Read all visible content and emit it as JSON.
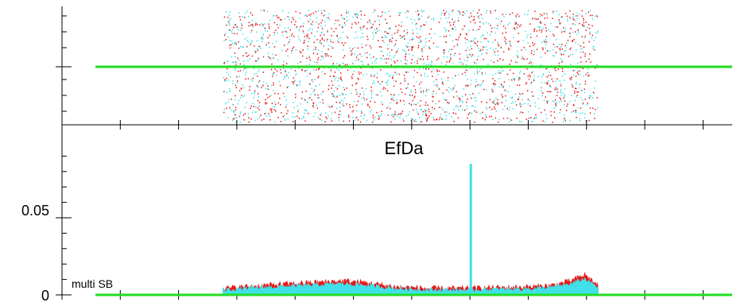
{
  "chart_data": [
    {
      "type": "scatter",
      "panel": "top",
      "description_style": "dense scatter of two colored series over a band of x, with a flat green reference line",
      "x_range_of_points": [
        0.24,
        0.8
      ],
      "series": [
        {
          "color": "#e81818",
          "marker": "dot"
        },
        {
          "color": "#40e0e8",
          "marker": "dot"
        },
        {
          "color": "#22dd22",
          "style": "line",
          "level": "mid"
        }
      ]
    },
    {
      "type": "area",
      "panel": "bottom",
      "title": "EfDa",
      "annotation": "multi SB",
      "yticks": [
        {
          "value": 0,
          "label": "0"
        },
        {
          "value": 0.05,
          "label": "0.05"
        }
      ],
      "ylim": [
        0,
        0.1
      ],
      "xlim": [
        0,
        1
      ],
      "series": [
        {
          "color": "#e81818",
          "style": "filled-area"
        },
        {
          "color": "#40e0e8",
          "style": "filled-area"
        },
        {
          "color": "#22dd22",
          "style": "baseline"
        }
      ],
      "envelope_points": [
        [
          0.24,
          0.004
        ],
        [
          0.3,
          0.006
        ],
        [
          0.34,
          0.007
        ],
        [
          0.38,
          0.008
        ],
        [
          0.42,
          0.009
        ],
        [
          0.45,
          0.008
        ],
        [
          0.5,
          0.005
        ],
        [
          0.55,
          0.004
        ],
        [
          0.6,
          0.004
        ],
        [
          0.65,
          0.0045
        ],
        [
          0.7,
          0.005
        ],
        [
          0.73,
          0.006
        ],
        [
          0.76,
          0.009
        ],
        [
          0.78,
          0.013
        ],
        [
          0.8,
          0.006
        ]
      ],
      "spike": {
        "x": 0.61,
        "value": 0.085,
        "color": "#40e0e8"
      }
    }
  ]
}
